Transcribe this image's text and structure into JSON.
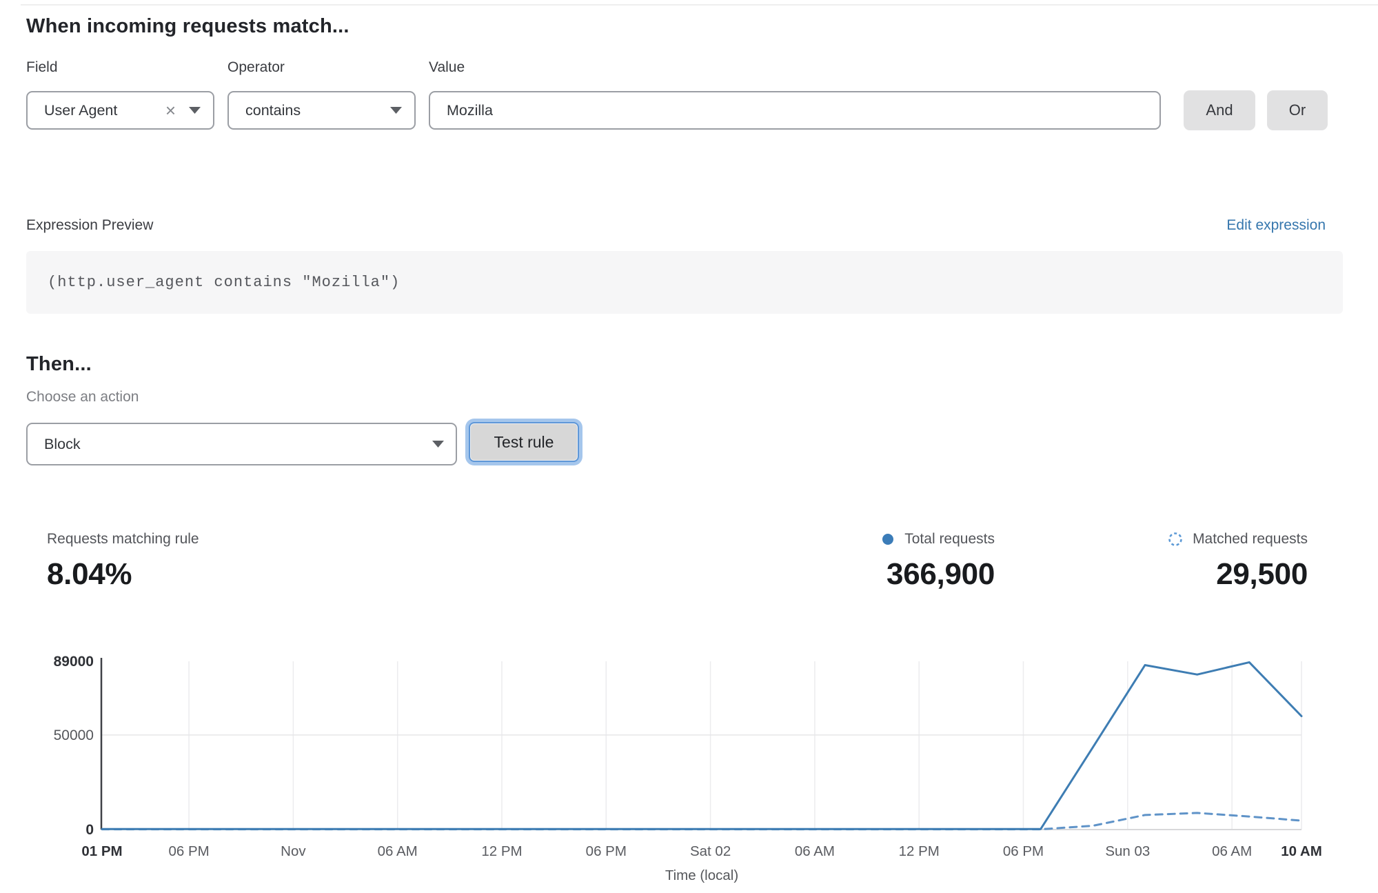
{
  "rule_builder": {
    "heading": "When incoming requests match...",
    "field_label": "Field",
    "operator_label": "Operator",
    "value_label": "Value",
    "field_value": "User Agent",
    "operator_value": "contains",
    "value_value": "Mozilla",
    "and_label": "And",
    "or_label": "Or"
  },
  "expression": {
    "label": "Expression Preview",
    "edit_link": "Edit expression",
    "code": "(http.user_agent contains \"Mozilla\")"
  },
  "action": {
    "heading": "Then...",
    "choose_label": "Choose an action",
    "selected_action": "Block",
    "test_button_label": "Test rule"
  },
  "stats": {
    "matching": {
      "label": "Requests matching rule",
      "value": "8.04%"
    },
    "total": {
      "label": "Total requests",
      "value": "366,900"
    },
    "matched": {
      "label": "Matched requests",
      "value": "29,500"
    }
  },
  "colors": {
    "accent_link_blue": "#3576ad",
    "total_line_blue": "#3e7db3",
    "matched_line_blue": "#5f93c8",
    "legend_dot_blue": "#3b7cb8",
    "focus_ring_blue": "#a5c6ec",
    "button_gray": "#e1e1e2",
    "code_background": "#f6f6f7"
  },
  "icons": {
    "field_clear": "close-icon",
    "dropdown": "chevron-down-icon",
    "total_legend": "solid-dot-icon",
    "matched_legend": "dashed-circle-icon"
  },
  "chart_data": {
    "type": "line",
    "title": "",
    "xlabel": "Time (local)",
    "ylabel": "",
    "ylim": [
      0,
      89000
    ],
    "x_hours_span": 69,
    "grid": "vertical-at-xticks-and-horizontal-at-50000",
    "legend_position": "above-right",
    "yticks": [
      {
        "value": 0,
        "label": "0",
        "bold": true
      },
      {
        "value": 50000,
        "label": "50000",
        "bold": false
      },
      {
        "value": 89000,
        "label": "89000",
        "bold": true
      }
    ],
    "xticks": [
      {
        "hour": 0,
        "label": "01 PM",
        "bold": true
      },
      {
        "hour": 5,
        "label": "06 PM",
        "bold": false
      },
      {
        "hour": 11,
        "label": "Nov",
        "bold": false
      },
      {
        "hour": 17,
        "label": "06 AM",
        "bold": false
      },
      {
        "hour": 23,
        "label": "12 PM",
        "bold": false
      },
      {
        "hour": 29,
        "label": "06 PM",
        "bold": false
      },
      {
        "hour": 35,
        "label": "Sat 02",
        "bold": false
      },
      {
        "hour": 41,
        "label": "06 AM",
        "bold": false
      },
      {
        "hour": 47,
        "label": "12 PM",
        "bold": false
      },
      {
        "hour": 53,
        "label": "06 PM",
        "bold": false
      },
      {
        "hour": 59,
        "label": "Sun 03",
        "bold": false
      },
      {
        "hour": 65,
        "label": "06 AM",
        "bold": false
      },
      {
        "hour": 69,
        "label": "10 AM",
        "bold": true
      }
    ],
    "x_hours": [
      0,
      3,
      6,
      9,
      12,
      15,
      18,
      21,
      24,
      27,
      30,
      33,
      36,
      39,
      42,
      45,
      48,
      51,
      54,
      57,
      60,
      63,
      66,
      69
    ],
    "series": [
      {
        "name": "Total requests",
        "style": "solid",
        "color": "#3e7db3",
        "values": [
          300,
          300,
          300,
          300,
          300,
          300,
          300,
          300,
          300,
          300,
          300,
          300,
          300,
          300,
          300,
          300,
          300,
          300,
          300,
          43500,
          87000,
          82000,
          88500,
          60000
        ]
      },
      {
        "name": "Matched requests",
        "style": "dashed",
        "color": "#5f93c8",
        "values": [
          150,
          150,
          150,
          150,
          150,
          150,
          150,
          150,
          150,
          150,
          150,
          150,
          150,
          150,
          150,
          150,
          150,
          150,
          150,
          2000,
          7700,
          8800,
          6900,
          4700
        ]
      }
    ]
  }
}
